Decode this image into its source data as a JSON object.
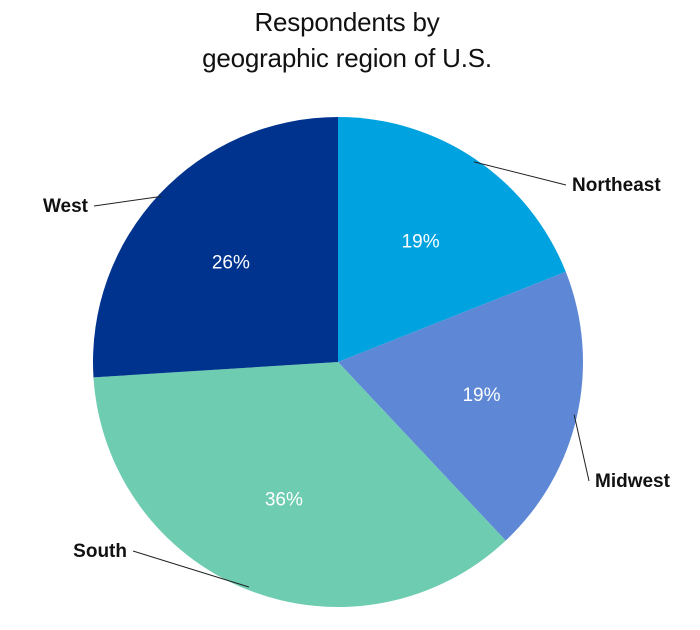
{
  "chart_data": {
    "type": "pie",
    "title": [
      "Respondents by",
      "geographic region of U.S."
    ],
    "slices": [
      {
        "label": "Northeast",
        "value": 19,
        "display": "19%",
        "color": "#00A3E0"
      },
      {
        "label": "Midwest",
        "value": 19,
        "display": "19%",
        "color": "#5E88D6"
      },
      {
        "label": "South",
        "value": 36,
        "display": "36%",
        "color": "#6ECCB0"
      },
      {
        "label": "West",
        "value": 26,
        "display": "26%",
        "color": "#00338D"
      }
    ]
  }
}
